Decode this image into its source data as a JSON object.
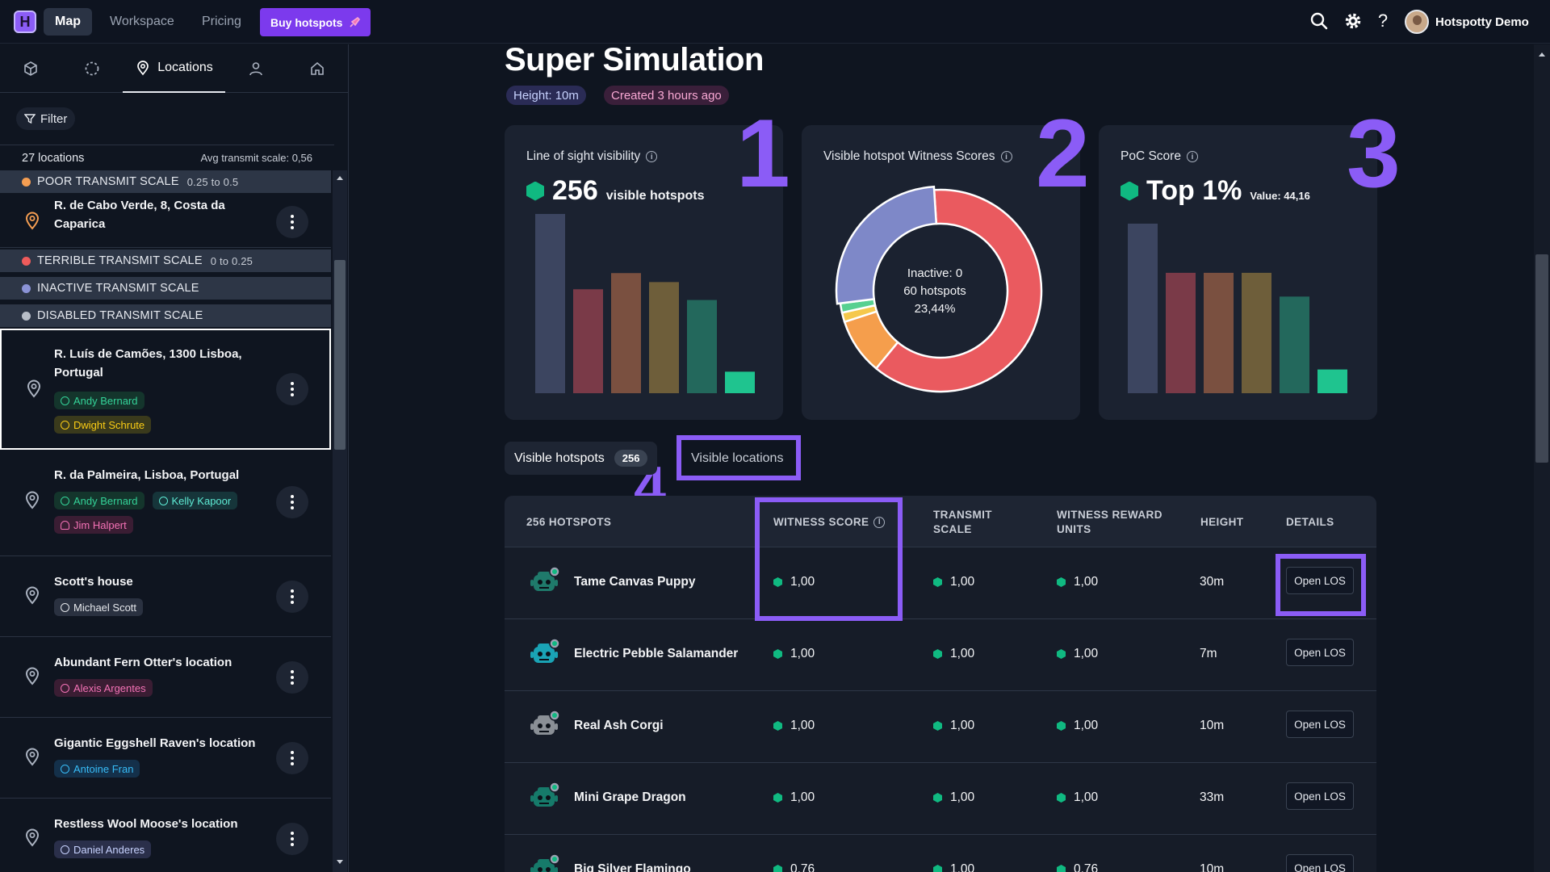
{
  "nav": {
    "logo_letter": "H",
    "links": [
      "Map",
      "Workspace",
      "Pricing"
    ],
    "buy_label": "Buy hotspots",
    "user_name": "Hotspotty Demo",
    "help": "?"
  },
  "sidebar": {
    "tabs": [
      {
        "icon": "cube-icon",
        "label": ""
      },
      {
        "icon": "dashed-circle-icon",
        "label": ""
      },
      {
        "icon": "location-pin-icon",
        "label": "Locations"
      },
      {
        "icon": "user-icon",
        "label": ""
      },
      {
        "icon": "home-icon",
        "label": ""
      }
    ],
    "filter_label": "Filter",
    "location_count": "27 locations",
    "avg_transmit": "Avg transmit scale: 0,56",
    "categories": [
      {
        "label": "POOR TRANSMIT SCALE",
        "range": "0.25 to 0.5",
        "color": "#f59e52"
      },
      {
        "label": "TERRIBLE TRANSMIT SCALE",
        "range": "0 to 0.25",
        "color": "#ef5b5b"
      },
      {
        "label": "INACTIVE TRANSMIT SCALE",
        "range": "",
        "color": "#8b93d6"
      },
      {
        "label": "DISABLED TRANSMIT SCALE",
        "range": "",
        "color": "#b8bec8"
      }
    ],
    "items": [
      {
        "title": "R. de Cabo Verde, 8, Costa da Caparica",
        "tags": []
      },
      {
        "title": "R. Luís de Camões, 1300 Lisboa, Portugal",
        "tags": [
          {
            "label": "Andy Bernard",
            "color": "green"
          },
          {
            "label": "Dwight Schrute",
            "color": "yellow"
          }
        ]
      },
      {
        "title": "R. da Palmeira, Lisboa, Portugal",
        "tags": [
          {
            "label": "Andy Bernard",
            "color": "green"
          },
          {
            "label": "Kelly Kapoor",
            "color": "teal"
          },
          {
            "label": "Jim Halpert",
            "color": "pink"
          }
        ]
      },
      {
        "title": "Scott's house",
        "tags": [
          {
            "label": "Michael Scott",
            "color": "gray"
          }
        ]
      },
      {
        "title": "Abundant Fern Otter's location",
        "tags": [
          {
            "label": "Alexis Argentes",
            "color": "pink"
          }
        ]
      },
      {
        "title": "Gigantic Eggshell Raven's location",
        "tags": [
          {
            "label": "Antoine Fran",
            "color": "blue"
          }
        ]
      },
      {
        "title": "Restless Wool Moose's location",
        "tags": [
          {
            "label": "Daniel Anderes",
            "color": "gray"
          }
        ]
      }
    ]
  },
  "main": {
    "title": "Super Simulation",
    "height_pill": "Height: 10m",
    "created_pill": "Created 3 hours ago",
    "annotations": [
      "1",
      "2",
      "3",
      "4"
    ],
    "cards": {
      "los": {
        "title": "Line of sight visibility",
        "value": "256",
        "unit": "visible hotspots"
      },
      "witness": {
        "title": "Visible hotspot Witness Scores",
        "center_line1": "Inactive: 0",
        "center_line2": "60 hotspots",
        "center_line3": "23,44%"
      },
      "poc": {
        "title": "PoC Score",
        "value": "Top 1%",
        "unit": "Value: 44,16"
      }
    },
    "tabs": {
      "visible_hotspots": "Visible hotspots",
      "hotspot_count": "256",
      "visible_locations": "Visible locations"
    },
    "table": {
      "headers": [
        "256 HOTSPOTS",
        "WITNESS SCORE",
        "TRANSMIT SCALE",
        "WITNESS REWARD UNITS",
        "HEIGHT",
        "DETAILS"
      ],
      "rows": [
        {
          "name": "Tame Canvas Puppy",
          "witness": "1,00",
          "transmit": "1,00",
          "reward": "1,00",
          "height": "30m",
          "btn": "Open LOS",
          "robot_color": "#1f7a6b"
        },
        {
          "name": "Electric Pebble Salamander",
          "witness": "1,00",
          "transmit": "1,00",
          "reward": "1,00",
          "height": "7m",
          "btn": "Open LOS",
          "robot_color": "#1aa3b5"
        },
        {
          "name": "Real Ash Corgi",
          "witness": "1,00",
          "transmit": "1,00",
          "reward": "1,00",
          "height": "10m",
          "btn": "Open LOS",
          "robot_color": "#8a8f96"
        },
        {
          "name": "Mini Grape Dragon",
          "witness": "1,00",
          "transmit": "1,00",
          "reward": "1,00",
          "height": "33m",
          "btn": "Open LOS",
          "robot_color": "#167a6a"
        },
        {
          "name": "Big Silver Flamingo",
          "witness": "0,76",
          "transmit": "1,00",
          "reward": "0,76",
          "height": "10m",
          "btn": "Open LOS",
          "robot_color": "#167a6a"
        }
      ]
    }
  },
  "charts": {
    "los_bars": [
      {
        "value": 100,
        "color": "#3c4560"
      },
      {
        "value": 58,
        "color": "#7a3a48"
      },
      {
        "value": 67,
        "color": "#7a5040"
      },
      {
        "value": 62,
        "color": "#6e5e3a"
      },
      {
        "value": 52,
        "color": "#23685c"
      },
      {
        "value": 12,
        "color": "#1fc48f"
      }
    ],
    "donut": [
      {
        "value": 62,
        "color": "#ea5a5f"
      },
      {
        "value": 9,
        "color": "#f59e4c"
      },
      {
        "value": 1.5,
        "color": "#f5c84c"
      },
      {
        "value": 1.5,
        "color": "#57d090"
      },
      {
        "value": 26,
        "color": "#7e88c8"
      }
    ],
    "poc_bars": [
      {
        "value": 100,
        "color": "#3c4560"
      },
      {
        "value": 71,
        "color": "#7a3a48"
      },
      {
        "value": 71,
        "color": "#7a5040"
      },
      {
        "value": 71,
        "color": "#6e5e3a"
      },
      {
        "value": 57,
        "color": "#23685c"
      },
      {
        "value": 14,
        "color": "#1fc48f"
      }
    ]
  }
}
